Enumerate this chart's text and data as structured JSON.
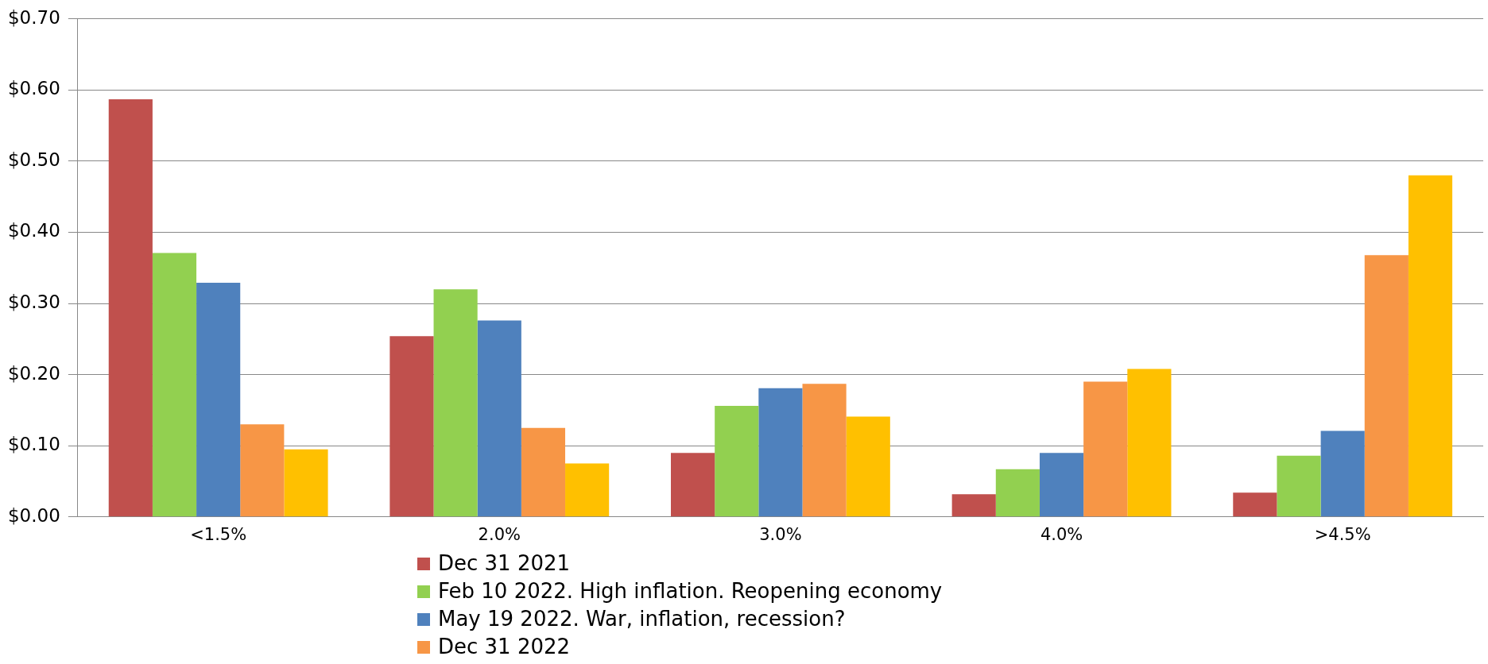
{
  "chart_data": {
    "type": "bar",
    "categories": [
      "<1.5%",
      "2.0%",
      "3.0%",
      "4.0%",
      ">4.5%"
    ],
    "series": [
      {
        "name": "Dec 31 2021",
        "color": "#c0504d",
        "values": [
          0.587,
          0.254,
          0.09,
          0.032,
          0.034
        ]
      },
      {
        "name": "Feb 10 2022.  High inflation. Reopening economy",
        "color": "#92d050",
        "values": [
          0.371,
          0.32,
          0.156,
          0.067,
          0.086
        ]
      },
      {
        "name": "May 19 2022.  War, inflation, recession?",
        "color": "#4f81bd",
        "values": [
          0.329,
          0.276,
          0.181,
          0.09,
          0.121
        ]
      },
      {
        "name": "Dec 31 2022",
        "color": "#f79646",
        "values": [
          0.13,
          0.125,
          0.187,
          0.19,
          0.368
        ]
      },
      {
        "color": "#ffc000",
        "values": [
          0.095,
          0.075,
          0.141,
          0.208,
          0.48
        ]
      }
    ],
    "ylim": [
      0,
      0.7
    ],
    "yticks": [
      {
        "value": 0,
        "label": "$0.00"
      },
      {
        "value": 0.1,
        "label": "$0.10"
      },
      {
        "value": 0.2,
        "label": "$0.20"
      },
      {
        "value": 0.3,
        "label": "$0.30"
      },
      {
        "value": 0.4,
        "label": "$0.40"
      },
      {
        "value": 0.5,
        "label": "$0.50"
      },
      {
        "value": 0.6,
        "label": "$0.60"
      },
      {
        "value": 0.7,
        "label": "$0.70"
      }
    ],
    "grid": "y",
    "legend": "bottom"
  }
}
